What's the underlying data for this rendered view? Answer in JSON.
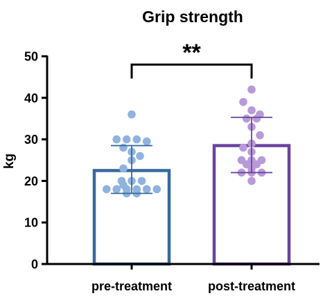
{
  "chart_data": {
    "type": "bar",
    "title": "Grip strength",
    "xlabel": "",
    "ylabel": "kg",
    "ylim": [
      0,
      50
    ],
    "yticks": [
      0,
      10,
      20,
      30,
      40,
      50
    ],
    "grid": false,
    "categories": [
      "pre-treatment",
      "post-treatment"
    ],
    "values": [
      22.5,
      28.5
    ],
    "sd_lower": [
      17,
      22
    ],
    "sd_upper": [
      28.5,
      35.3
    ],
    "bar_colors": [
      "#386a9c",
      "#6a449e"
    ],
    "point_colors": [
      "#8fb3de",
      "#b89ad8"
    ],
    "points": [
      [
        36,
        30,
        30,
        30,
        29.5,
        28,
        27,
        26,
        25,
        23,
        20,
        20,
        20,
        19,
        18,
        18,
        18,
        18,
        18,
        18,
        17,
        17
      ],
      [
        42,
        39,
        37,
        36,
        35,
        35,
        33,
        31,
        29,
        28,
        27,
        25,
        25,
        25,
        24,
        24,
        23,
        22,
        22,
        22,
        20
      ]
    ],
    "significance": {
      "label": "**",
      "between": [
        0,
        1
      ]
    }
  }
}
